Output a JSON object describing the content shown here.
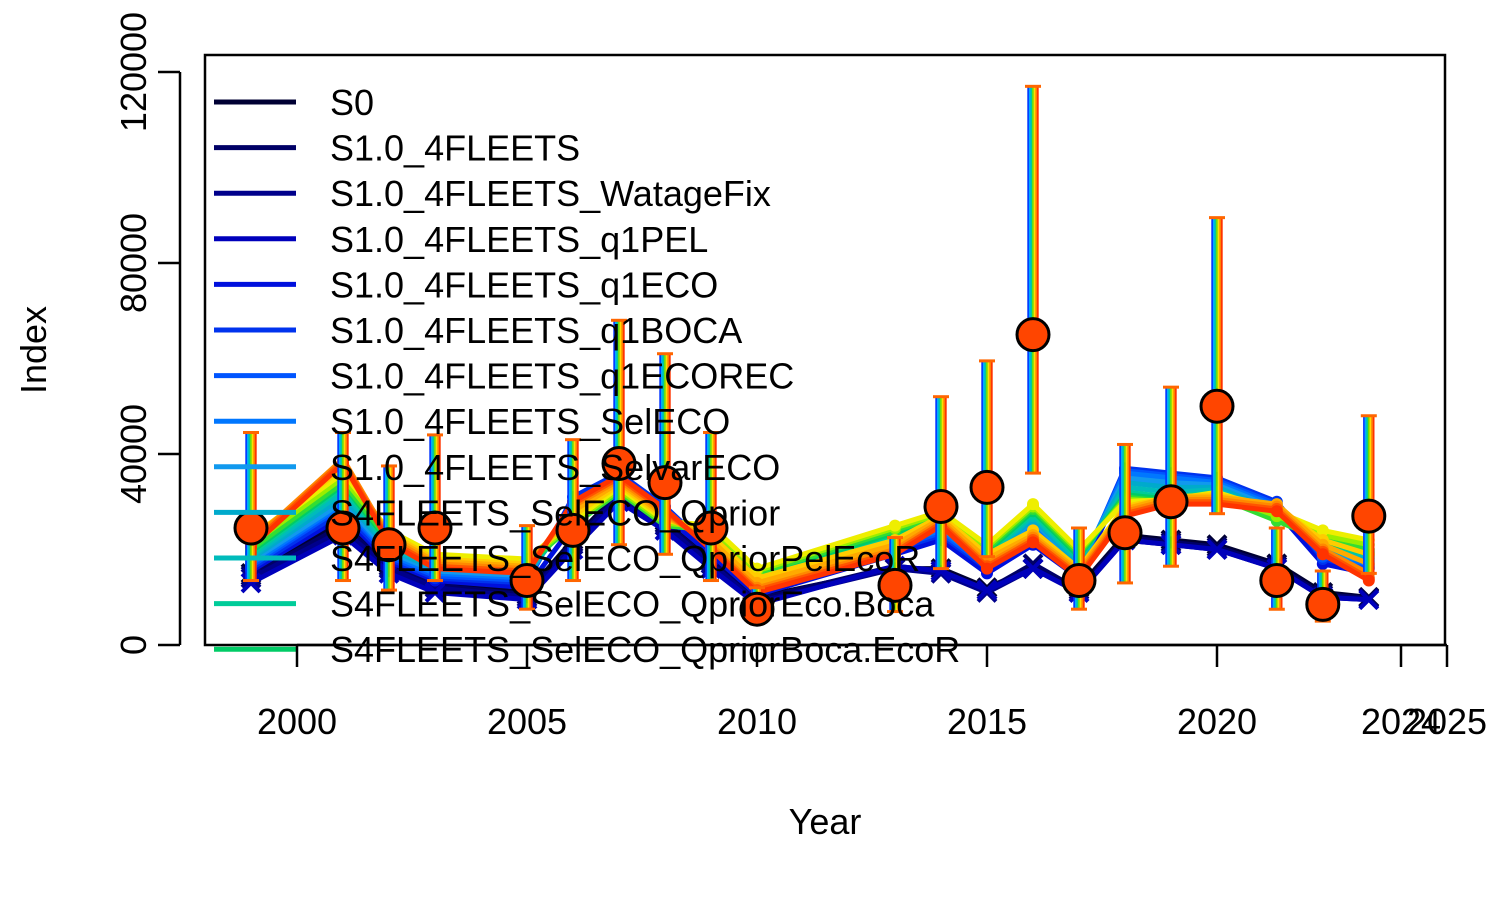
{
  "chart_data": {
    "type": "line",
    "xlabel": "Year",
    "ylabel": "Index",
    "xlim": [
      1998.0,
      2025.0
    ],
    "ylim": [
      0,
      120000
    ],
    "x_ticks": [
      2000,
      2005,
      2010,
      2015,
      2020,
      2024,
      2025
    ],
    "x_tick_labels": [
      "2000",
      "2005",
      "2010",
      "2015",
      "2020",
      "2024",
      "2025"
    ],
    "y_ticks": [
      0,
      40000,
      80000,
      120000
    ],
    "y_tick_labels": [
      "0",
      "40000",
      "80000",
      "120000"
    ],
    "legend_position": "top-left",
    "grid": false,
    "years": [
      1999.0,
      2001.0,
      2002.0,
      2003.0,
      2005.0,
      2006.0,
      2007.0,
      2008.0,
      2009.0,
      2010.0,
      2013.0,
      2014.0,
      2015.0,
      2016.0,
      2017.0,
      2018.0,
      2019.0,
      2020.0,
      2021.3,
      2022.3,
      2023.3
    ],
    "observed": {
      "values": [
        24500,
        24500,
        21000,
        24500,
        13500,
        24000,
        38000,
        34000,
        24500,
        7500,
        12500,
        29000,
        33000,
        65000,
        13500,
        23500,
        30000,
        50000,
        13500,
        8500,
        27000
      ],
      "upper": [
        44500,
        44500,
        37500,
        44000,
        25000,
        43000,
        68000,
        61000,
        44500,
        12000,
        22500,
        52000,
        59500,
        117000,
        24500,
        42000,
        54000,
        89500,
        24500,
        15500,
        48000
      ],
      "lower": [
        13500,
        13500,
        11500,
        13500,
        7500,
        13500,
        21000,
        19000,
        13500,
        4500,
        7000,
        16000,
        18500,
        36000,
        7500,
        13000,
        16500,
        27500,
        7500,
        5000,
        15000
      ]
    },
    "series": [
      {
        "name": "S0",
        "color": "#000033",
        "values": [
          15000,
          26000,
          17000,
          13000,
          11000,
          22000,
          32000,
          26000,
          18000,
          10000,
          16000,
          16000,
          12000,
          16000,
          12000,
          23000,
          22000,
          21000,
          17000,
          11000,
          10000
        ]
      },
      {
        "name": "S1.0_4FLEETS",
        "color": "#000066",
        "values": [
          14500,
          25000,
          16500,
          12500,
          10500,
          21500,
          31500,
          25500,
          17500,
          9500,
          16500,
          15500,
          11500,
          17000,
          11500,
          22500,
          21500,
          20500,
          16500,
          10500,
          9800
        ]
      },
      {
        "name": "S1.0_4FLEETS_WatageFix",
        "color": "#00008B",
        "values": [
          14000,
          24000,
          16000,
          12000,
          10000,
          21000,
          31000,
          25000,
          17000,
          9000,
          16000,
          15000,
          11000,
          16000,
          11000,
          22000,
          21000,
          20000,
          16000,
          10000,
          9500
        ]
      },
      {
        "name": "S1.0_4FLEETS_q1PEL",
        "color": "#0000BB",
        "values": [
          13000,
          23000,
          15000,
          11000,
          9500,
          20000,
          30000,
          24000,
          16000,
          8500,
          16500,
          15500,
          11500,
          16000,
          11000,
          22000,
          21000,
          20000,
          16000,
          10000,
          9500
        ]
      },
      {
        "name": "S1.0_4FLEETS_q1ECO",
        "color": "#0010DD",
        "values": [
          15500,
          27000,
          17500,
          13500,
          12000,
          25000,
          34000,
          27000,
          19000,
          10500,
          19000,
          22000,
          15000,
          21000,
          14000,
          35000,
          34000,
          33000,
          28000,
          17000,
          15000
        ]
      },
      {
        "name": "S1.0_4FLEETS_q1BOCA",
        "color": "#0033EE",
        "values": [
          16000,
          28000,
          18000,
          14000,
          13000,
          31000,
          36000,
          29000,
          20000,
          11000,
          20000,
          23000,
          16000,
          24000,
          15000,
          37000,
          36000,
          35000,
          30000,
          18000,
          16000
        ]
      },
      {
        "name": "S1.0_4FLEETS_q1ECOREC",
        "color": "#0055FF",
        "values": [
          16500,
          29000,
          18500,
          14500,
          13500,
          30000,
          35500,
          28500,
          20500,
          11500,
          20500,
          23500,
          16500,
          25000,
          15500,
          36500,
          35500,
          34500,
          29500,
          18500,
          16500
        ]
      },
      {
        "name": "S1.0_4FLEETS_SelECO",
        "color": "#0077FF",
        "values": [
          17000,
          29500,
          19000,
          15000,
          14000,
          29000,
          35000,
          28000,
          21000,
          12000,
          21000,
          24000,
          17000,
          25500,
          16000,
          36000,
          35000,
          34000,
          29000,
          19000,
          17000
        ]
      },
      {
        "name": "S1.0_4FLEETS_SelvarECO",
        "color": "#1199EE",
        "values": [
          17500,
          30000,
          19500,
          15500,
          14500,
          28000,
          34500,
          27500,
          21500,
          12500,
          21500,
          24500,
          17500,
          26000,
          16500,
          35000,
          34000,
          33500,
          28500,
          19500,
          17500
        ]
      },
      {
        "name": "S4FLEETS_SelECO_Qprior",
        "color": "#00AACC",
        "values": [
          18000,
          31000,
          20000,
          16000,
          15000,
          27000,
          34000,
          27000,
          22000,
          13000,
          22000,
          25000,
          18000,
          26500,
          17000,
          34000,
          33000,
          33000,
          28000,
          20000,
          18000
        ]
      },
      {
        "name": "S4FLEETS_SelECO_QpriorPelEcoR",
        "color": "#00BBBB",
        "values": [
          18500,
          32000,
          20500,
          16500,
          15500,
          26500,
          33500,
          26500,
          22500,
          13500,
          22500,
          25500,
          18500,
          27000,
          17500,
          33000,
          32000,
          32500,
          27500,
          20500,
          18500
        ]
      },
      {
        "name": "S4FLEETS_SelECO_QpriorEco.Boca",
        "color": "#00CC99",
        "values": [
          19000,
          33000,
          21000,
          17000,
          16000,
          26000,
          33000,
          26000,
          23000,
          14000,
          23000,
          26000,
          19000,
          27500,
          18000,
          32000,
          31000,
          32000,
          27000,
          21000,
          19000
        ]
      },
      {
        "name": "S4FLEETS_SelECO_QpriorBoca.EcoR",
        "color": "#00CC66",
        "values": [
          19500,
          33500,
          21500,
          17500,
          16500,
          25500,
          32500,
          25500,
          23500,
          14500,
          23500,
          26500,
          19500,
          28000,
          18500,
          31500,
          30500,
          31500,
          26500,
          21500,
          19500
        ]
      },
      {
        "name": "",
        "color": "#33DD33",
        "values": [
          20000,
          34000,
          22000,
          18000,
          17000,
          25000,
          32000,
          25000,
          24000,
          15000,
          24000,
          27000,
          20000,
          28500,
          19000,
          31000,
          30000,
          31000,
          26000,
          22000,
          20000
        ]
      },
      {
        "name": "",
        "color": "#99EE00",
        "values": [
          21000,
          35000,
          23000,
          18500,
          17500,
          25500,
          32500,
          25500,
          24500,
          15500,
          24500,
          27500,
          20500,
          29000,
          19500,
          30500,
          30000,
          31500,
          27000,
          23000,
          21000
        ]
      },
      {
        "name": "",
        "color": "#EEEE00",
        "values": [
          22000,
          36000,
          24000,
          19000,
          18000,
          26000,
          33000,
          26000,
          25000,
          16000,
          25000,
          28000,
          21000,
          29500,
          20000,
          30000,
          30500,
          32000,
          28000,
          24000,
          22000
        ]
      },
      {
        "name": "",
        "color": "#FFCC00",
        "values": [
          22500,
          37000,
          23500,
          18000,
          17000,
          27000,
          33500,
          26500,
          23000,
          14000,
          22000,
          27000,
          19000,
          24000,
          16000,
          29000,
          31000,
          31500,
          29000,
          22000,
          19000
        ]
      },
      {
        "name": "",
        "color": "#FFAA00",
        "values": [
          22000,
          38000,
          23000,
          17500,
          16500,
          28000,
          34000,
          27000,
          22000,
          13000,
          21000,
          26500,
          18000,
          23000,
          15500,
          28500,
          31000,
          31000,
          29500,
          21000,
          17000
        ]
      },
      {
        "name": "",
        "color": "#FF8800",
        "values": [
          21500,
          39000,
          22500,
          17000,
          16000,
          29000,
          34500,
          27500,
          21000,
          12000,
          20000,
          26000,
          17000,
          22500,
          15000,
          28000,
          30500,
          30500,
          29000,
          20000,
          15000
        ]
      },
      {
        "name": "",
        "color": "#FF5500",
        "values": [
          21000,
          38500,
          22000,
          16500,
          15500,
          29500,
          35000,
          28000,
          20500,
          11500,
          19500,
          25500,
          16500,
          22000,
          14500,
          27500,
          30000,
          30000,
          28500,
          19500,
          14000
        ]
      },
      {
        "name": "",
        "color": "#FF3300",
        "values": [
          20500,
          38000,
          21500,
          16000,
          15000,
          30000,
          35500,
          28500,
          20000,
          11000,
          19000,
          25000,
          16000,
          21500,
          14000,
          27000,
          29500,
          29500,
          28000,
          19000,
          13500
        ]
      }
    ]
  }
}
